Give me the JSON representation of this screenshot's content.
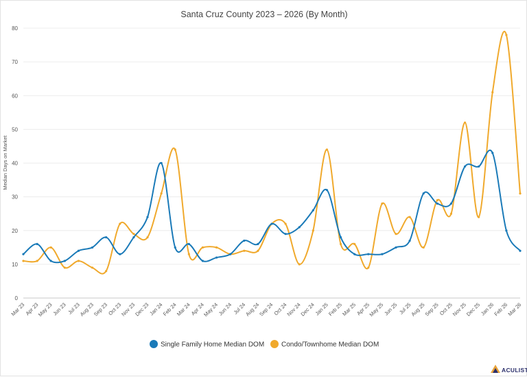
{
  "chart_data": {
    "type": "line",
    "title": "Santa Cruz County 2023 – 2026 (By Month)",
    "xlabel": "",
    "ylabel": "Median Days on Market",
    "ylim": [
      0,
      80
    ],
    "yticks": [
      "0",
      "10",
      "20",
      "30",
      "40",
      "50",
      "60",
      "70",
      "80"
    ],
    "grid": true,
    "legend_position": "bottom",
    "categories": [
      "Mar 23",
      "Apr 23",
      "May 23",
      "Jun 23",
      "Jul 23",
      "Aug 23",
      "Sep 23",
      "Oct 23",
      "Nov 23",
      "Dec 23",
      "Jan 24",
      "Feb 24",
      "Mar 24",
      "Apr 24",
      "May 24",
      "Jun 24",
      "Jul 24",
      "Aug 24",
      "Sep 24",
      "Oct 24",
      "Nov 24",
      "Dec 24",
      "Jan 25",
      "Feb 25",
      "Mar 25",
      "Apr 25",
      "May 25",
      "Jun 25",
      "Jul 25",
      "Aug 25",
      "Sep 25",
      "Oct 25",
      "Nov 25",
      "Dec 25",
      "Jan 26",
      "Feb 26",
      "Mar 26"
    ],
    "series": [
      {
        "name": "Single Family Home Median DOM",
        "color": "#1a7ab8",
        "values": [
          13,
          16,
          11,
          11,
          14,
          15,
          18,
          13,
          18,
          24,
          40,
          15,
          16,
          11,
          12,
          13,
          17,
          16,
          22,
          19,
          21,
          26,
          32,
          18,
          13,
          13,
          13,
          15,
          17,
          31,
          28,
          28,
          39,
          39,
          43,
          20,
          14
        ]
      },
      {
        "name": "Condo/Townhome Median DOM",
        "color": "#f0a92c",
        "values": [
          11,
          11,
          15,
          9,
          11,
          9,
          8,
          22,
          19,
          18,
          31,
          44,
          13,
          15,
          15,
          13,
          14,
          14,
          22,
          22,
          10,
          20,
          44,
          16,
          16,
          9,
          28,
          19,
          24,
          15,
          29,
          25,
          52,
          24,
          61,
          78,
          31
        ]
      }
    ]
  },
  "branding": {
    "logo_text": "ACULIST",
    "logo_icon": "aculist-triangle-icon"
  }
}
